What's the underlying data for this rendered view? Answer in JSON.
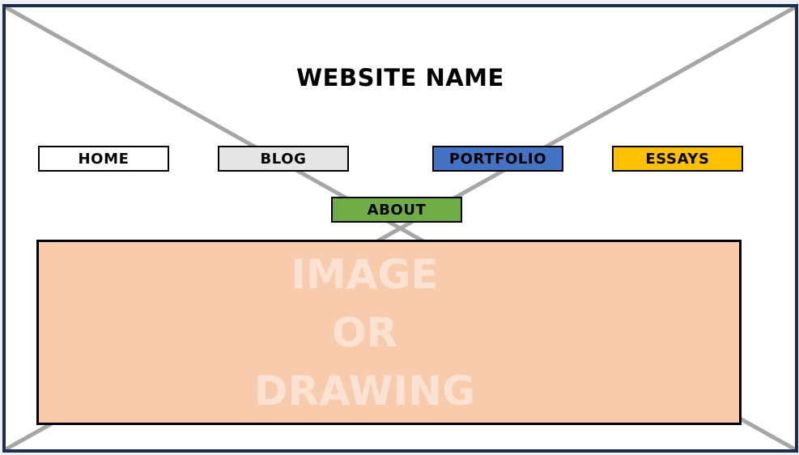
{
  "site": {
    "title": "WEBSITE NAME"
  },
  "nav": [
    {
      "label": "HOME",
      "bg": "#ffffff"
    },
    {
      "label": "BLOG",
      "bg": "#e6e6e6"
    },
    {
      "label": "PORTFOLIO",
      "bg": "#4472c4"
    },
    {
      "label": "ESSAYS",
      "bg": "#ffc000"
    },
    {
      "label": "ABOUT",
      "bg": "#70ad47"
    }
  ],
  "hero": {
    "lines": [
      "IMAGE",
      "OR",
      "DRAWING"
    ],
    "bg": "#f8cbad"
  },
  "colors": {
    "frame_border": "#1e2d4d",
    "cross_lines": "#a6a6a6"
  },
  "icons": {
    "placeholder": "placeholder-cross-icon"
  }
}
